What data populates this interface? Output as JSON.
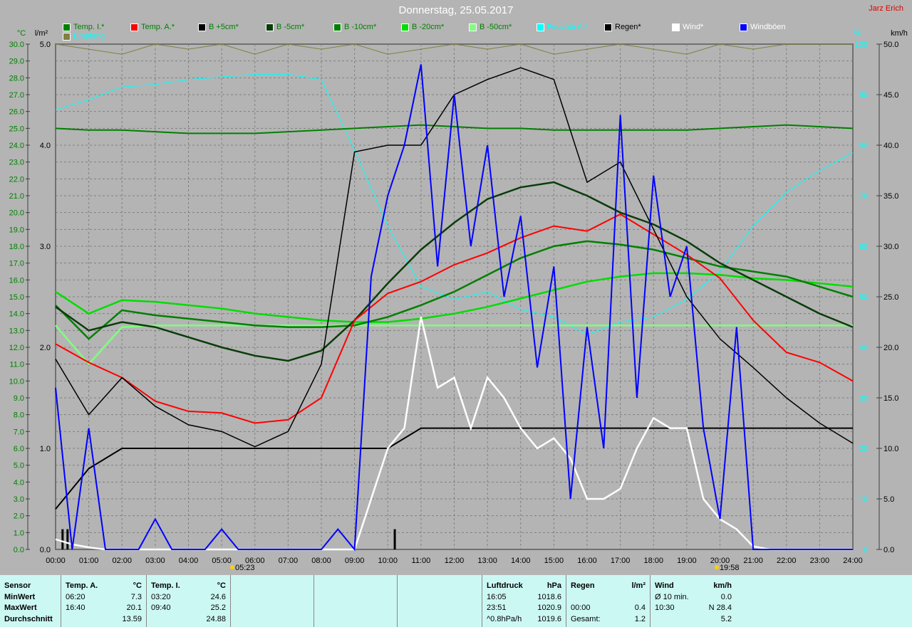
{
  "title": "Donnerstag, 25.05.2017",
  "owner": "Jarz Erich",
  "axis_labels": {
    "temp": "°C",
    "rain": "l/m²",
    "humidity": "%",
    "wind": "km/h"
  },
  "sun": {
    "sunrise": "05:23",
    "sunset": "19:58"
  },
  "legend": [
    {
      "label": "Temp. I.*",
      "color": "#008000",
      "text": "#008000"
    },
    {
      "label": "Temp. A.*",
      "color": "#ff0000",
      "text": "#008000"
    },
    {
      "label": "B +5cm*",
      "color": "#000000",
      "text": "#008000"
    },
    {
      "label": "B -5cm*",
      "color": "#0a3c0a",
      "text": "#008000"
    },
    {
      "label": "B -10cm*",
      "color": "#008000",
      "text": "#008000"
    },
    {
      "label": "B -20cm*",
      "color": "#00dd00",
      "text": "#008000"
    },
    {
      "label": "B -50cm*",
      "color": "#80ff80",
      "text": "#008000"
    },
    {
      "label": "Feuchte A.*",
      "color": "#00ffff",
      "text": "#00ffff"
    },
    {
      "label": "Regen*",
      "color": "#000000",
      "text": "#000000"
    },
    {
      "label": "Wind*",
      "color": "#ffffff",
      "text": "#ffffff"
    },
    {
      "label": "Windböen",
      "color": "#0000ff",
      "text": "#ffffff"
    },
    {
      "label": "Empfang",
      "color": "#808040",
      "text": "#00ffff"
    }
  ],
  "chart_data": {
    "type": "line",
    "x_range": [
      "00:00",
      "24:00"
    ],
    "x_ticks": [
      "00:00",
      "01:00",
      "02:00",
      "03:00",
      "04:00",
      "05:00",
      "06:00",
      "07:00",
      "08:00",
      "09:00",
      "10:00",
      "11:00",
      "12:00",
      "13:00",
      "14:00",
      "15:00",
      "16:00",
      "17:00",
      "18:00",
      "19:00",
      "20:00",
      "21:00",
      "22:00",
      "23:00",
      "24:00"
    ],
    "axes": {
      "temp": {
        "range": [
          0,
          30
        ],
        "step": 1
      },
      "rain": {
        "range": [
          0,
          5
        ],
        "step": 1
      },
      "humidity": {
        "range": [
          0,
          100
        ],
        "step": 10
      },
      "wind": {
        "range": [
          0,
          50
        ],
        "step": 5
      }
    },
    "grid": true,
    "hourly_x": [
      0,
      1,
      2,
      3,
      4,
      5,
      6,
      7,
      8,
      9,
      10,
      11,
      12,
      13,
      14,
      15,
      16,
      17,
      18,
      19,
      20,
      21,
      22,
      23,
      24
    ],
    "series": [
      {
        "name": "Temp. I.*",
        "axis": "temp",
        "color": "#008000",
        "width": 2,
        "values": [
          25.0,
          24.9,
          24.9,
          24.8,
          24.7,
          24.7,
          24.7,
          24.8,
          24.9,
          25.0,
          25.1,
          25.2,
          25.1,
          25.0,
          25.0,
          24.9,
          24.9,
          24.9,
          24.9,
          24.9,
          25.0,
          25.1,
          25.2,
          25.1,
          25.0
        ]
      },
      {
        "name": "Temp. A.*",
        "axis": "temp",
        "color": "#ff0000",
        "width": 2,
        "values": [
          12.2,
          11.1,
          10.2,
          8.8,
          8.2,
          8.1,
          7.5,
          7.7,
          9.0,
          13.6,
          15.2,
          15.9,
          16.9,
          17.6,
          18.5,
          19.2,
          18.9,
          19.9,
          18.7,
          17.5,
          16.1,
          13.6,
          11.7,
          11.1,
          10.0
        ]
      },
      {
        "name": "B +5cm*",
        "axis": "temp",
        "color": "#000000",
        "width": 1.5,
        "values": [
          11.3,
          8.0,
          10.2,
          8.5,
          7.4,
          7.0,
          6.1,
          7.0,
          11.0,
          23.6,
          24.0,
          24.0,
          27.0,
          27.9,
          28.6,
          27.9,
          21.8,
          23.0,
          19.0,
          15.0,
          12.5,
          10.8,
          9.0,
          7.5,
          6.3
        ]
      },
      {
        "name": "B -5cm*",
        "axis": "temp",
        "color": "#0a3c0a",
        "width": 2.5,
        "values": [
          14.4,
          13.0,
          13.5,
          13.2,
          12.6,
          12.0,
          11.5,
          11.2,
          11.8,
          13.6,
          15.8,
          17.8,
          19.4,
          20.8,
          21.5,
          21.8,
          21.0,
          20.0,
          19.3,
          18.3,
          17.0,
          16.0,
          15.0,
          14.0,
          13.2
        ]
      },
      {
        "name": "B -10cm*",
        "axis": "temp",
        "color": "#008000",
        "width": 2.5,
        "values": [
          14.5,
          12.5,
          14.2,
          13.9,
          13.7,
          13.5,
          13.3,
          13.2,
          13.2,
          13.3,
          13.8,
          14.5,
          15.3,
          16.3,
          17.3,
          18.0,
          18.3,
          18.1,
          17.8,
          17.3,
          16.8,
          16.5,
          16.2,
          15.6,
          15.0
        ]
      },
      {
        "name": "B -20cm*",
        "axis": "temp",
        "color": "#00dd00",
        "width": 2.5,
        "values": [
          15.3,
          14.0,
          14.8,
          14.7,
          14.5,
          14.3,
          14.0,
          13.8,
          13.6,
          13.5,
          13.5,
          13.7,
          14.0,
          14.4,
          14.9,
          15.4,
          15.9,
          16.2,
          16.4,
          16.4,
          16.3,
          16.1,
          16.0,
          15.8,
          15.6
        ]
      },
      {
        "name": "B -50cm*",
        "axis": "temp",
        "color": "#80ff80",
        "width": 2.5,
        "values": [
          13.3,
          11.0,
          13.2,
          13.3,
          13.3,
          13.3,
          13.3,
          13.3,
          13.3,
          13.3,
          13.3,
          13.3,
          13.3,
          13.3,
          13.3,
          13.3,
          13.3,
          13.3,
          13.3,
          13.3,
          13.3,
          13.3,
          13.3,
          13.3,
          13.3
        ]
      },
      {
        "name": "Feuchte A.*",
        "axis": "humidity",
        "color": "#00ffff",
        "width": 1,
        "values": [
          87,
          89,
          91.5,
          92,
          93,
          93.5,
          94,
          94,
          93,
          79,
          64,
          52,
          49.5,
          51,
          47.5,
          46,
          42.5,
          45,
          46,
          49.5,
          55,
          64,
          70.7,
          75,
          78.5
        ]
      },
      {
        "name": "Empfang",
        "axis": "humidity",
        "color": "#808040",
        "width": 1,
        "values": [
          100,
          99,
          98,
          100,
          99,
          100,
          98,
          100,
          99,
          100,
          98,
          99,
          100,
          99,
          100,
          98,
          99,
          100,
          99,
          98,
          100,
          99,
          100,
          100,
          100
        ]
      },
      {
        "name": "Regen*",
        "axis": "rain",
        "color": "#000000",
        "width": 2,
        "values": [
          0.4,
          0.8,
          1.0,
          1.0,
          1.0,
          1.0,
          1.0,
          1.0,
          1.0,
          1.0,
          1.0,
          1.2,
          1.2,
          1.2,
          1.2,
          1.2,
          1.2,
          1.2,
          1.2,
          1.2,
          1.2,
          1.2,
          1.2,
          1.2,
          1.2
        ]
      }
    ],
    "half_hourly_x": [
      0,
      0.5,
      1,
      1.5,
      2,
      2.5,
      3,
      3.5,
      4,
      4.5,
      5,
      5.5,
      6,
      6.5,
      7,
      7.5,
      8,
      8.5,
      9,
      9.5,
      10,
      10.5,
      11,
      11.5,
      12,
      12.5,
      13,
      13.5,
      14,
      14.5,
      15,
      15.5,
      16,
      16.5,
      17,
      17.5,
      18,
      18.5,
      19,
      19.5,
      20,
      20.5,
      21,
      21.5,
      22,
      22.5,
      23,
      23.5,
      24
    ],
    "wind_series": [
      {
        "name": "Wind*",
        "axis": "wind",
        "color": "#ffffff",
        "width": 2.5,
        "values": [
          1,
          0.5,
          0.2,
          0,
          0,
          0,
          0,
          0,
          0,
          0,
          0,
          0,
          0,
          0,
          0,
          0,
          0,
          0,
          0,
          5,
          10,
          12,
          23,
          16,
          17,
          12,
          17,
          15,
          12,
          10,
          11,
          9,
          5,
          5,
          6,
          10,
          13,
          12,
          12,
          5,
          3,
          2,
          0.3,
          0,
          0,
          0,
          0,
          0,
          0
        ]
      },
      {
        "name": "Windböen",
        "axis": "wind",
        "color": "#0000ff",
        "width": 2,
        "values": [
          16,
          0,
          12,
          0,
          0,
          0,
          3,
          0,
          0,
          0,
          2,
          0,
          0,
          0,
          0,
          0,
          0,
          2,
          0,
          27,
          35,
          40,
          48,
          28,
          45,
          30,
          40,
          25,
          33,
          18,
          28,
          5,
          22,
          10,
          43,
          15,
          37,
          25,
          30,
          12,
          3,
          22,
          0,
          0,
          0,
          0,
          0,
          0,
          0
        ]
      }
    ],
    "rain_bars": [
      {
        "time": 0.2,
        "value": 0.2
      },
      {
        "time": 0.35,
        "value": 0.2
      },
      {
        "time": 10.2,
        "value": 0.2
      }
    ]
  },
  "table": {
    "col1": {
      "rows": [
        "Sensor",
        "MinWert",
        "MaxWert",
        "Durchschnitt"
      ]
    },
    "temp_a": {
      "header": "Temp. A.",
      "unit": "°C",
      "rows": [
        [
          "06:20",
          "7.3"
        ],
        [
          "16:40",
          "20.1"
        ],
        [
          "",
          "13.59"
        ]
      ]
    },
    "temp_i": {
      "header": "Temp. I.",
      "unit": "°C",
      "rows": [
        [
          "03:20",
          "24.6"
        ],
        [
          "09:40",
          "25.2"
        ],
        [
          "",
          "24.88"
        ]
      ]
    },
    "pressure": {
      "header": "Luftdruck",
      "unit": "hPa",
      "rows": [
        [
          "16:05",
          "1018.6"
        ],
        [
          "23:51",
          "1020.9"
        ],
        [
          "^0.8hPa/h",
          "1019.6"
        ]
      ]
    },
    "rain": {
      "header": "Regen",
      "unit": "l/m²",
      "rows": [
        [
          "",
          ""
        ],
        [
          "00:00",
          "0.4"
        ],
        [
          "Gesamt:",
          "1.2"
        ]
      ]
    },
    "wind": {
      "header": "Wind",
      "unit": "km/h",
      "rows": [
        [
          "Ø 10 min.",
          "0.0"
        ],
        [
          "10:30",
          "N 28.4"
        ],
        [
          "",
          "5.2"
        ]
      ]
    }
  }
}
